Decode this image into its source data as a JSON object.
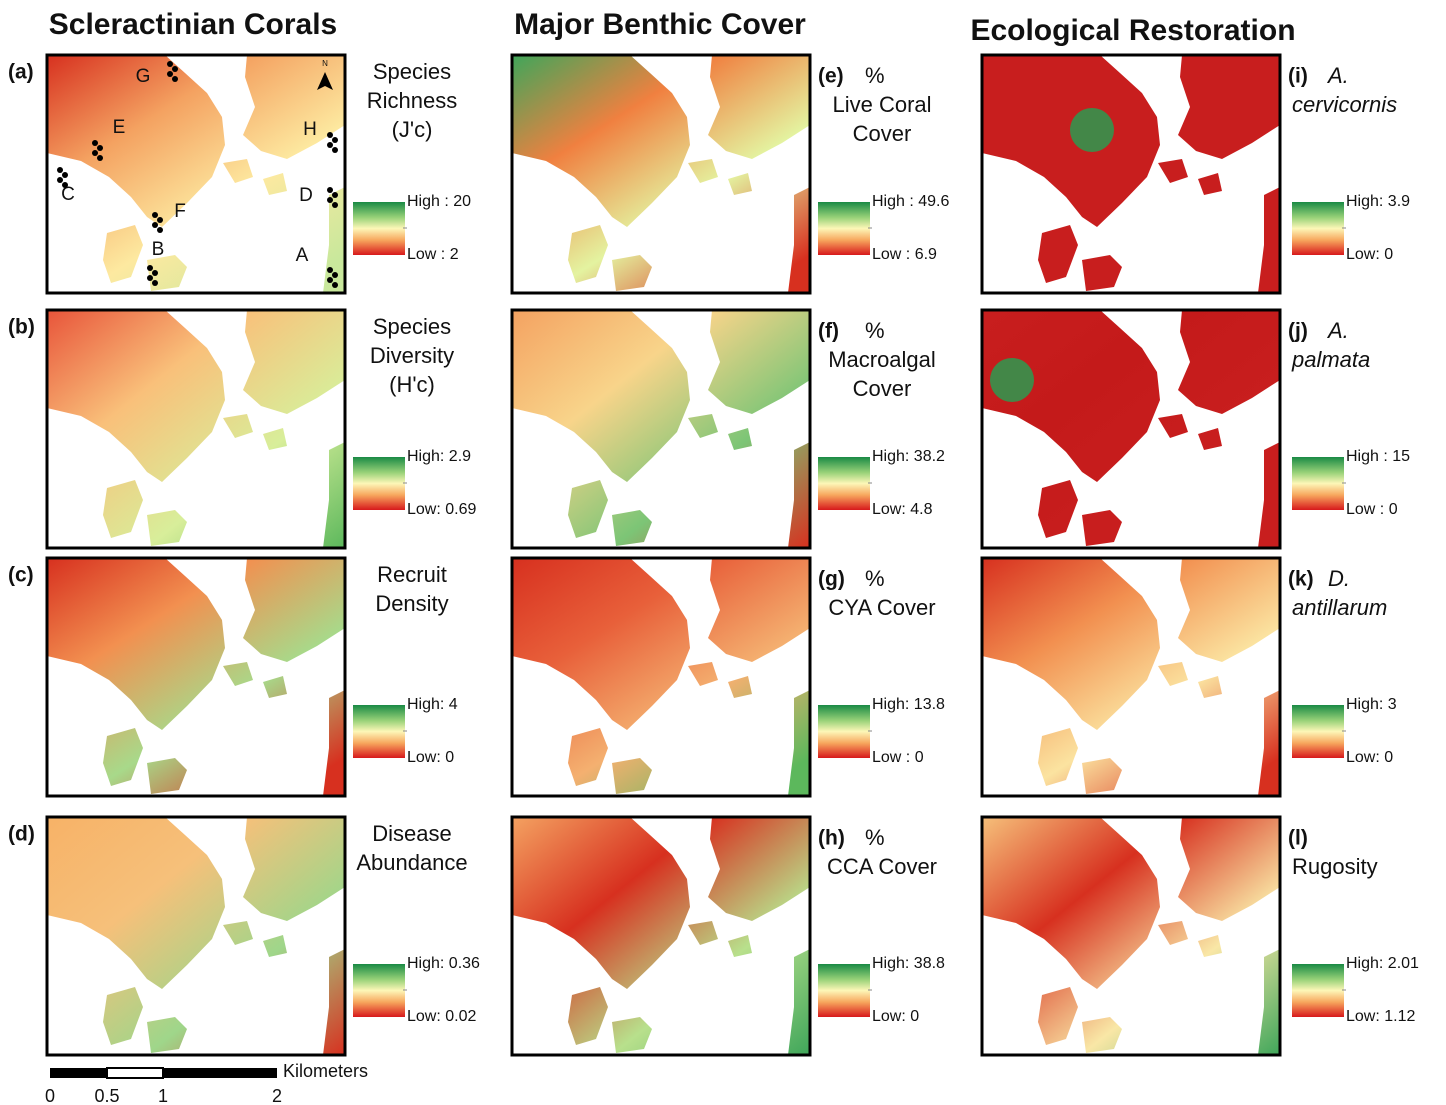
{
  "columns": [
    {
      "title": "Scleractinian Corals",
      "panels": [
        {
          "letter": "(a)",
          "label": [
            "Species",
            "Richness",
            "(J'c)"
          ],
          "high": "High : 20",
          "low": "Low : 2"
        },
        {
          "letter": "(b)",
          "label": [
            "Species",
            "Diversity",
            "(H'c)"
          ],
          "high": "High: 2.9",
          "low": "Low: 0.69"
        },
        {
          "letter": "(c)",
          "label": [
            "Recruit",
            "Density"
          ],
          "high": "High: 4",
          "low": "Low: 0"
        },
        {
          "letter": "(d)",
          "label": [
            "Disease",
            "Abundance"
          ],
          "high": "High: 0.36",
          "low": "Low: 0.02"
        }
      ]
    },
    {
      "title": "Major Benthic Cover",
      "panels": [
        {
          "letter": "(e)",
          "label": [
            "%",
            "Live Coral",
            "Cover"
          ],
          "high": "High : 49.6",
          "low": "Low : 6.9"
        },
        {
          "letter": "(f)",
          "label": [
            "%",
            "Macroalgal",
            "Cover"
          ],
          "high": "High: 38.2",
          "low": "Low: 4.8"
        },
        {
          "letter": "(g)",
          "label": [
            "%",
            "CYA Cover"
          ],
          "high": "High: 13.8",
          "low": "Low : 0"
        },
        {
          "letter": "(h)",
          "label": [
            "%",
            "CCA Cover"
          ],
          "high": "High: 38.8",
          "low": "Low: 0"
        }
      ]
    },
    {
      "title": "Ecological Restoration",
      "panels": [
        {
          "letter": "(i)",
          "label": [
            "A.",
            "cervicornis"
          ],
          "high": "High: 3.9",
          "low": "Low: 0"
        },
        {
          "letter": "(j)",
          "label": [
            "A.",
            "palmata"
          ],
          "high": "High : 15",
          "low": "Low : 0"
        },
        {
          "letter": "(k)",
          "label": [
            "D.",
            "antillarum"
          ],
          "high": "High: 3",
          "low": "Low: 0"
        },
        {
          "letter": "(l)",
          "label": [
            "Rugosity"
          ],
          "high": "High: 2.01",
          "low": "Low: 1.12"
        }
      ]
    }
  ],
  "site_labels": [
    "G",
    "E",
    "H",
    "C",
    "D",
    "F",
    "B",
    "A"
  ],
  "north": "N",
  "scale_bar": {
    "unit": "Kilometers",
    "ticks": [
      "0",
      "0.5",
      "1",
      "2"
    ]
  }
}
